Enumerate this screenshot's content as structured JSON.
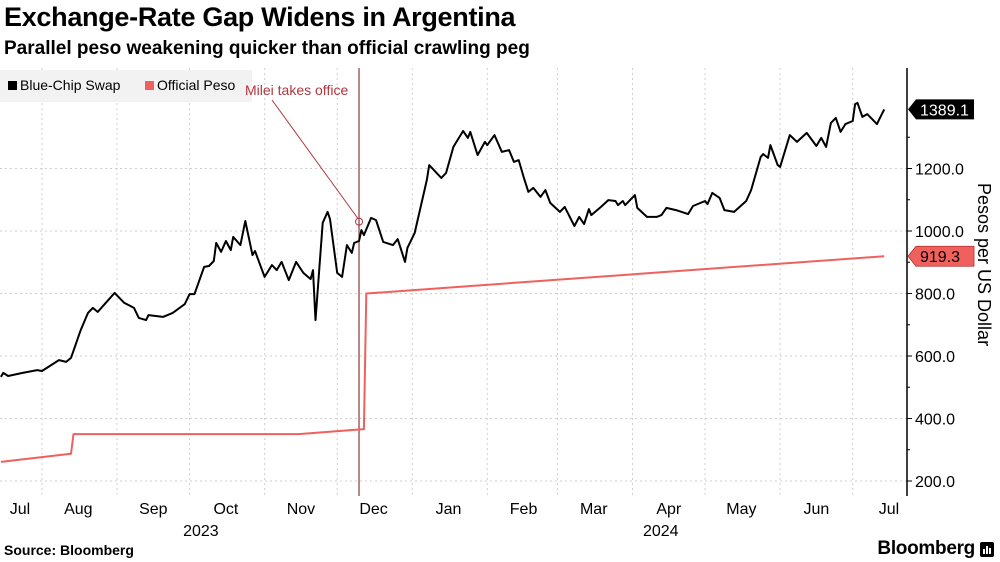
{
  "chart_data": {
    "type": "line",
    "title": "Exchange-Rate Gap Widens in Argentina",
    "subtitle": "Parallel peso weakening quicker than official crawling peg",
    "ylabel": "Pesos per US Dollar",
    "y_axis_position": "right",
    "ylim": [
      170,
      1480
    ],
    "yticks": [
      "200.0",
      "400.0",
      "600.0",
      "800.0",
      "1000.0",
      "1200.0"
    ],
    "yticks_values": [
      200,
      400,
      600,
      800,
      1000,
      1200
    ],
    "xlim": [
      "2023-07-15",
      "2024-07-24"
    ],
    "xticks": [
      {
        "label": "Jul",
        "month": "2023-07"
      },
      {
        "label": "Aug",
        "month": "2023-08"
      },
      {
        "label": "Sep",
        "month": "2023-09"
      },
      {
        "label": "Oct",
        "month": "2023-10"
      },
      {
        "label": "Nov",
        "month": "2023-11"
      },
      {
        "label": "Dec",
        "month": "2023-12"
      },
      {
        "label": "Jan",
        "month": "2024-01"
      },
      {
        "label": "Feb",
        "month": "2024-02"
      },
      {
        "label": "Mar",
        "month": "2024-03"
      },
      {
        "label": "Apr",
        "month": "2024-04"
      },
      {
        "label": "May",
        "month": "2024-05"
      },
      {
        "label": "Jun",
        "month": "2024-06"
      },
      {
        "label": "Jul",
        "month": "2024-07"
      }
    ],
    "year_labels": [
      {
        "label": "2023",
        "month": "2023-10"
      },
      {
        "label": "2024",
        "month": "2024-04"
      }
    ],
    "grid": true,
    "legend_position": "top-left",
    "annotation": {
      "label": "Milei takes office",
      "date": "2023-12-10",
      "value": 1030,
      "color": "#b0363e"
    },
    "series": [
      {
        "name": "Blue-Chip Swap",
        "color": "#000000",
        "last_label": "1389.1",
        "points": [
          [
            "2023-07-15",
            533
          ],
          [
            "2023-07-16",
            546
          ],
          [
            "2023-07-18",
            536
          ],
          [
            "2023-07-24",
            546
          ],
          [
            "2023-07-30",
            555
          ],
          [
            "2023-08-01",
            552
          ],
          [
            "2023-08-08",
            587
          ],
          [
            "2023-08-11",
            581
          ],
          [
            "2023-08-13",
            594
          ],
          [
            "2023-08-17",
            683
          ],
          [
            "2023-08-20",
            738
          ],
          [
            "2023-08-22",
            754
          ],
          [
            "2023-08-24",
            741
          ],
          [
            "2023-08-31",
            802
          ],
          [
            "2023-09-04",
            770
          ],
          [
            "2023-09-08",
            754
          ],
          [
            "2023-09-10",
            722
          ],
          [
            "2023-09-13",
            715
          ],
          [
            "2023-09-14",
            731
          ],
          [
            "2023-09-20",
            725
          ],
          [
            "2023-09-24",
            738
          ],
          [
            "2023-09-29",
            766
          ],
          [
            "2023-10-01",
            798
          ],
          [
            "2023-10-03",
            798
          ],
          [
            "2023-10-07",
            885
          ],
          [
            "2023-10-09",
            888
          ],
          [
            "2023-10-11",
            904
          ],
          [
            "2023-10-12",
            962
          ],
          [
            "2023-10-14",
            933
          ],
          [
            "2023-10-16",
            968
          ],
          [
            "2023-10-18",
            939
          ],
          [
            "2023-10-19",
            981
          ],
          [
            "2023-10-22",
            955
          ],
          [
            "2023-10-24",
            1032
          ],
          [
            "2023-10-27",
            923
          ],
          [
            "2023-10-28",
            936
          ],
          [
            "2023-11-01",
            853
          ],
          [
            "2023-11-04",
            891
          ],
          [
            "2023-11-06",
            875
          ],
          [
            "2023-11-08",
            901
          ],
          [
            "2023-11-11",
            843
          ],
          [
            "2023-11-14",
            901
          ],
          [
            "2023-11-17",
            866
          ],
          [
            "2023-11-20",
            846
          ],
          [
            "2023-11-21",
            875
          ],
          [
            "2023-11-22",
            715
          ],
          [
            "2023-11-25",
            1026
          ],
          [
            "2023-11-27",
            1061
          ],
          [
            "2023-11-28",
            1038
          ],
          [
            "2023-12-01",
            866
          ],
          [
            "2023-12-03",
            853
          ],
          [
            "2023-12-05",
            955
          ],
          [
            "2023-12-07",
            930
          ],
          [
            "2023-12-08",
            962
          ],
          [
            "2023-12-10",
            968
          ],
          [
            "2023-12-11",
            1003
          ],
          [
            "2023-12-12",
            987
          ],
          [
            "2023-12-15",
            1042
          ],
          [
            "2023-12-17",
            1035
          ],
          [
            "2023-12-20",
            965
          ],
          [
            "2023-12-24",
            955
          ],
          [
            "2023-12-26",
            974
          ],
          [
            "2023-12-29",
            901
          ],
          [
            "2023-12-30",
            946
          ],
          [
            "2024-01-02",
            994
          ],
          [
            "2024-01-07",
            1163
          ],
          [
            "2024-01-08",
            1211
          ],
          [
            "2024-01-13",
            1170
          ],
          [
            "2024-01-15",
            1186
          ],
          [
            "2024-01-18",
            1269
          ],
          [
            "2024-01-22",
            1320
          ],
          [
            "2024-01-24",
            1298
          ],
          [
            "2024-01-25",
            1317
          ],
          [
            "2024-01-28",
            1243
          ],
          [
            "2024-01-31",
            1285
          ],
          [
            "2024-02-01",
            1275
          ],
          [
            "2024-02-04",
            1307
          ],
          [
            "2024-02-07",
            1253
          ],
          [
            "2024-02-10",
            1259
          ],
          [
            "2024-02-12",
            1221
          ],
          [
            "2024-02-14",
            1227
          ],
          [
            "2024-02-16",
            1173
          ],
          [
            "2024-02-18",
            1125
          ],
          [
            "2024-02-20",
            1138
          ],
          [
            "2024-02-23",
            1109
          ],
          [
            "2024-02-25",
            1131
          ],
          [
            "2024-02-27",
            1090
          ],
          [
            "2024-03-02",
            1061
          ],
          [
            "2024-03-04",
            1077
          ],
          [
            "2024-03-08",
            1016
          ],
          [
            "2024-03-10",
            1045
          ],
          [
            "2024-03-12",
            1022
          ],
          [
            "2024-03-14",
            1070
          ],
          [
            "2024-03-15",
            1051
          ],
          [
            "2024-03-19",
            1077
          ],
          [
            "2024-03-22",
            1099
          ],
          [
            "2024-03-25",
            1096
          ],
          [
            "2024-03-26",
            1083
          ],
          [
            "2024-03-28",
            1096
          ],
          [
            "2024-03-29",
            1083
          ],
          [
            "2024-04-02",
            1115
          ],
          [
            "2024-04-03",
            1074
          ],
          [
            "2024-04-07",
            1045
          ],
          [
            "2024-04-11",
            1045
          ],
          [
            "2024-04-13",
            1051
          ],
          [
            "2024-04-15",
            1074
          ],
          [
            "2024-04-19",
            1067
          ],
          [
            "2024-04-24",
            1054
          ],
          [
            "2024-04-26",
            1080
          ],
          [
            "2024-05-01",
            1096
          ],
          [
            "2024-05-02",
            1086
          ],
          [
            "2024-05-04",
            1122
          ],
          [
            "2024-05-07",
            1106
          ],
          [
            "2024-05-09",
            1067
          ],
          [
            "2024-05-13",
            1061
          ],
          [
            "2024-05-18",
            1096
          ],
          [
            "2024-05-20",
            1131
          ],
          [
            "2024-05-24",
            1237
          ],
          [
            "2024-05-25",
            1246
          ],
          [
            "2024-05-27",
            1234
          ],
          [
            "2024-05-28",
            1275
          ],
          [
            "2024-05-31",
            1211
          ],
          [
            "2024-06-01",
            1205
          ],
          [
            "2024-06-05",
            1307
          ],
          [
            "2024-06-08",
            1285
          ],
          [
            "2024-06-12",
            1314
          ],
          [
            "2024-06-16",
            1272
          ],
          [
            "2024-06-18",
            1298
          ],
          [
            "2024-06-20",
            1269
          ],
          [
            "2024-06-22",
            1346
          ],
          [
            "2024-06-24",
            1362
          ],
          [
            "2024-06-26",
            1317
          ],
          [
            "2024-06-28",
            1342
          ],
          [
            "2024-07-01",
            1352
          ],
          [
            "2024-07-02",
            1406
          ],
          [
            "2024-07-03",
            1410
          ],
          [
            "2024-07-05",
            1365
          ],
          [
            "2024-07-07",
            1374
          ],
          [
            "2024-07-09",
            1358
          ],
          [
            "2024-07-11",
            1342
          ],
          [
            "2024-07-14",
            1389.1
          ]
        ]
      },
      {
        "name": "Official Peso",
        "color": "#f0605d",
        "last_label": "919.3",
        "points": [
          [
            "2023-07-15",
            261
          ],
          [
            "2023-08-13",
            287
          ],
          [
            "2023-08-14",
            350
          ],
          [
            "2023-11-15",
            350
          ],
          [
            "2023-12-12",
            366
          ],
          [
            "2023-12-13",
            800
          ],
          [
            "2024-07-14",
            919.3
          ]
        ]
      }
    ]
  },
  "footer": {
    "source": "Source: Bloomberg",
    "brand": "Bloomberg"
  }
}
